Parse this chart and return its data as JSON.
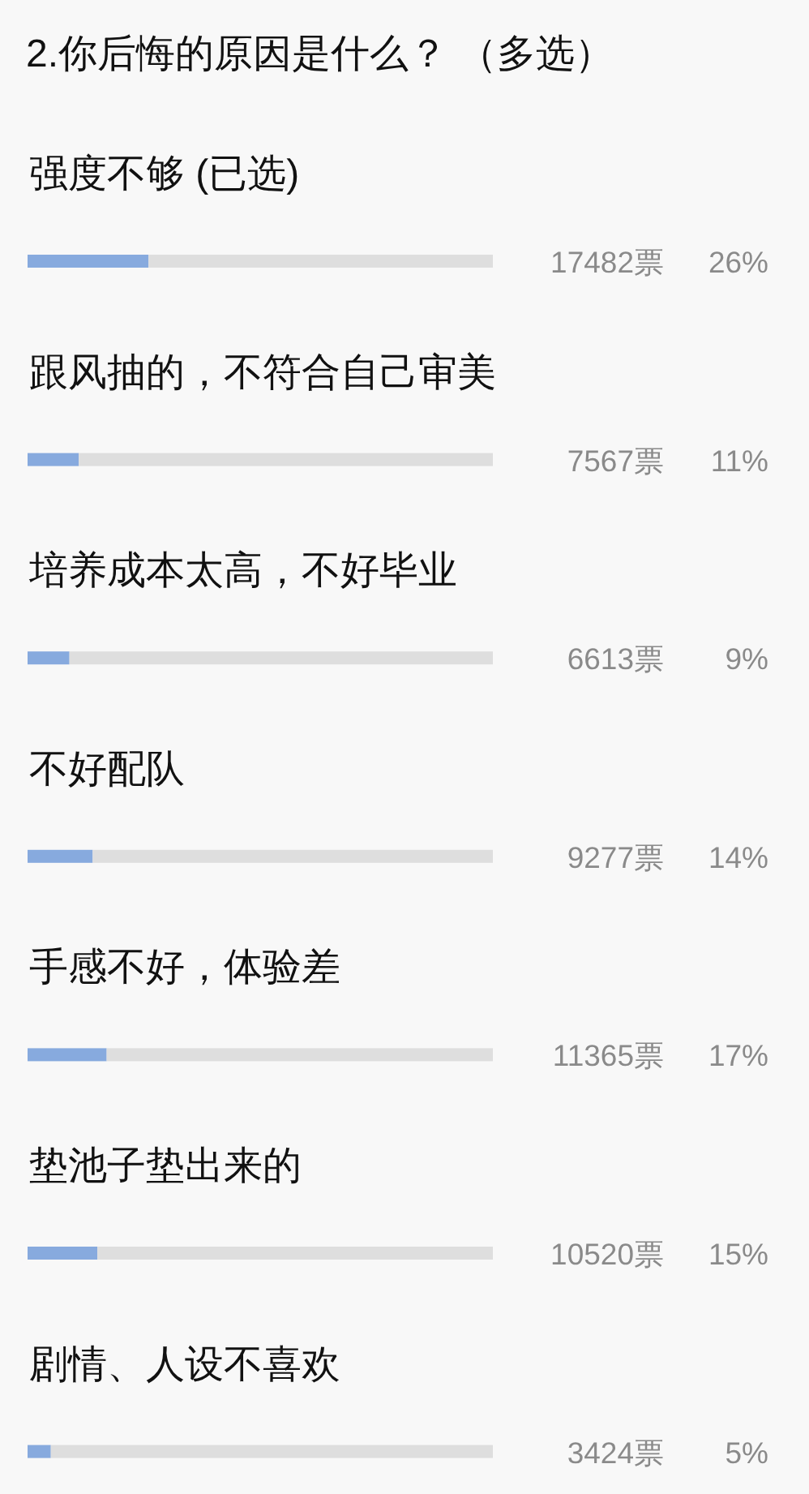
{
  "chart_data": {
    "type": "bar",
    "orientation": "horizontal",
    "title": "2.你后悔的原因是什么？ （多选）",
    "categories": [
      "强度不够 (已选)",
      "跟风抽的，不符合自己审美",
      "培养成本太高，不好毕业",
      "不好配队",
      "手感不好，体验差",
      "垫池子垫出来的",
      "剧情、人设不喜欢"
    ],
    "values": [
      26,
      11,
      9,
      14,
      17,
      15,
      5
    ],
    "color": "#87aade",
    "xlim": [
      0,
      100
    ],
    "value_labels": [
      "26%",
      "11%",
      "9%",
      "14%",
      "17%",
      "15%",
      "5%"
    ],
    "annotations": [
      "17482票",
      "7567票",
      "6613票",
      "9277票",
      "11365票",
      "10520票",
      "3424票"
    ],
    "tick_labels": "y"
  }
}
